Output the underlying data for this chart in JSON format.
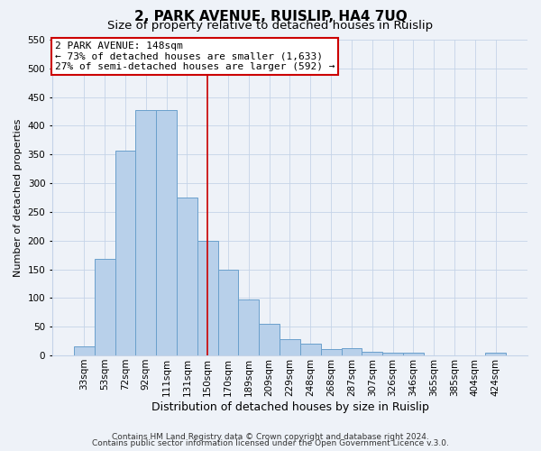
{
  "title": "2, PARK AVENUE, RUISLIP, HA4 7UQ",
  "subtitle": "Size of property relative to detached houses in Ruislip",
  "xlabel": "Distribution of detached houses by size in Ruislip",
  "ylabel": "Number of detached properties",
  "bar_labels": [
    "33sqm",
    "53sqm",
    "72sqm",
    "92sqm",
    "111sqm",
    "131sqm",
    "150sqm",
    "170sqm",
    "189sqm",
    "209sqm",
    "229sqm",
    "248sqm",
    "268sqm",
    "287sqm",
    "307sqm",
    "326sqm",
    "346sqm",
    "365sqm",
    "385sqm",
    "404sqm",
    "424sqm"
  ],
  "bar_values": [
    15,
    168,
    357,
    427,
    427,
    275,
    200,
    150,
    97,
    55,
    28,
    20,
    11,
    12,
    6,
    5,
    4,
    0,
    0,
    0,
    4
  ],
  "bar_color": "#b8d0ea",
  "bar_edge_color": "#6aa0cc",
  "vline_x": 6,
  "vline_color": "#cc0000",
  "annotation_line1": "2 PARK AVENUE: 148sqm",
  "annotation_line2": "← 73% of detached houses are smaller (1,633)",
  "annotation_line3": "27% of semi-detached houses are larger (592) →",
  "annotation_box_color": "#ffffff",
  "annotation_box_edge_color": "#cc0000",
  "ylim": [
    0,
    550
  ],
  "yticks": [
    0,
    50,
    100,
    150,
    200,
    250,
    300,
    350,
    400,
    450,
    500,
    550
  ],
  "footer_line1": "Contains HM Land Registry data © Crown copyright and database right 2024.",
  "footer_line2": "Contains public sector information licensed under the Open Government Licence v.3.0.",
  "bg_color": "#eef2f8",
  "grid_color": "#c5d3e8",
  "title_fontsize": 11,
  "subtitle_fontsize": 9.5,
  "xlabel_fontsize": 9,
  "ylabel_fontsize": 8,
  "tick_fontsize": 7.5,
  "annotation_fontsize": 8,
  "footer_fontsize": 6.5
}
